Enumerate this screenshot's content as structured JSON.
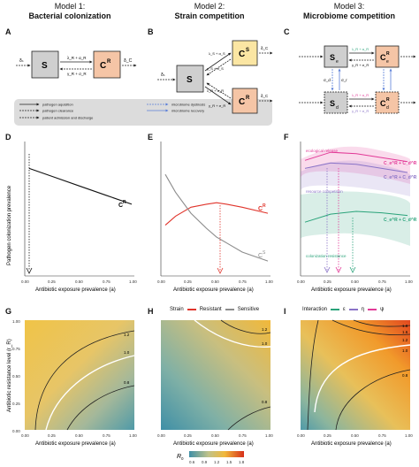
{
  "models": [
    {
      "number": "Model 1:",
      "name": "Bacterial colonization"
    },
    {
      "number": "Model 2:",
      "name": "Strain competition"
    },
    {
      "number": "Model 3:",
      "name": "Microbiome competition"
    }
  ],
  "panel_letters": [
    "A",
    "B",
    "C",
    "D",
    "E",
    "F",
    "G",
    "H",
    "I"
  ],
  "diagram": {
    "S": "S",
    "CR": "C",
    "CR_sup": "R",
    "CS": "C",
    "CS_sup": "S",
    "Se": "S",
    "Se_sub": "e",
    "Sd": "S",
    "Sd_sub": "d",
    "Ce": "C",
    "Ce_sup": "R",
    "Ce_sub": "e",
    "Cd": "C",
    "Cd_sup": "R",
    "Cd_sub": "d",
    "in_rate": "δₛ",
    "out_rate_S": "δₛ",
    "out_rate_C": "δ_C",
    "fwd_rate": "λ_R + α_R",
    "back_rate": "γ_R + σ_R",
    "fwd_rate_s": "λ_S + α_S",
    "back_rate_s": "γ_S + σ_S",
    "dys": "σ_d",
    "rec": "σ_r",
    "dys_text": "microbiome dysbiosis",
    "rec_text": "microbiome recovery",
    "acq_text": "pathogen aquisition",
    "clr_text": "pathogen clearance",
    "adm_text": "patient admission and discharge"
  },
  "x_axis_label": "Antibiotic exposure prevalence (a)",
  "y_axis_label_row1": "Pathogen colonization prevalence",
  "y_axis_label_row3": "Antibiotic resistance level (r_R)",
  "ticks": [
    "0.00",
    "0.25",
    "0.50",
    "0.75",
    "1.00"
  ],
  "legend_strain": {
    "title": "Strain",
    "items": [
      "Resistant",
      "Sensitive"
    ],
    "colors": [
      "#e0342b",
      "#8c8c8c"
    ]
  },
  "legend_interaction": {
    "title": "Interaction",
    "items": [
      "ε",
      "η",
      "ψ"
    ],
    "colors": [
      "#2aa37a",
      "#8a73c7",
      "#e23a97"
    ]
  },
  "f_annotations": [
    "ecological release",
    "resource competition",
    "colonization resistance"
  ],
  "f_series": [
    "C_e^R + C_d^R",
    "C_e^R + C_d^R",
    "C_e^R + C_d^R"
  ],
  "curve_labels": {
    "D": "C",
    "D_sup": "R",
    "E_R": "C",
    "E_R_sup": "R",
    "E_S": "C",
    "E_S_sup": "S"
  },
  "contour_labels": [
    "1.2",
    "1.0",
    "0.8"
  ],
  "colorbar": {
    "title": "R",
    "title_sub": "0",
    "ticks": [
      "0.6",
      "0.9",
      "1.2",
      "1.5",
      "1.8"
    ]
  },
  "chart_data": [
    {
      "type": "line",
      "panel": "D",
      "xlabel": "Antibiotic exposure prevalence (a)",
      "ylabel": "Pathogen colonization prevalence",
      "series": [
        {
          "name": "C^R",
          "x": [
            0,
            0.25,
            0.5,
            0.75,
            1.0
          ],
          "values": [
            0.36,
            0.33,
            0.3,
            0.27,
            0.24
          ]
        }
      ],
      "xlim": [
        0,
        1
      ]
    },
    {
      "type": "line",
      "panel": "E",
      "xlabel": "Antibiotic exposure prevalence (a)",
      "series": [
        {
          "name": "C^R",
          "x": [
            0,
            0.1,
            0.25,
            0.4,
            0.5,
            0.6,
            0.75,
            1.0
          ],
          "values": [
            0.17,
            0.2,
            0.23,
            0.24,
            0.245,
            0.24,
            0.23,
            0.21
          ]
        },
        {
          "name": "C^S",
          "x": [
            0,
            0.1,
            0.25,
            0.4,
            0.5,
            0.6,
            0.75,
            1.0
          ],
          "values": [
            0.34,
            0.28,
            0.21,
            0.16,
            0.13,
            0.11,
            0.08,
            0.05
          ]
        }
      ],
      "xlim": [
        0,
        1
      ]
    },
    {
      "type": "area",
      "panel": "F",
      "xlabel": "Antibiotic exposure prevalence (a)",
      "series": [
        {
          "name": "C_e^R + C_d^R",
          "x": [
            0,
            0.25,
            0.5,
            0.75,
            1.0
          ],
          "values": [
            0.86,
            0.92,
            0.91,
            0.88,
            0.85
          ]
        },
        {
          "name": "C_e^R + C_d^R",
          "x": [
            0,
            0.25,
            0.5,
            0.75,
            1.0
          ],
          "values": [
            0.8,
            0.84,
            0.83,
            0.8,
            0.77
          ]
        },
        {
          "name": "C_e^R + C_d^R",
          "x": [
            0,
            0.25,
            0.5,
            0.75,
            1.0
          ],
          "values": [
            0.4,
            0.46,
            0.48,
            0.47,
            0.45
          ]
        }
      ],
      "xlim": [
        0,
        1
      ]
    },
    {
      "type": "heatmap",
      "panel": "G",
      "xlabel": "Antibiotic exposure prevalence (a)",
      "ylabel": "Antibiotic resistance level (r_R)",
      "contours": [
        "1.2",
        "1.0",
        "0.8"
      ]
    },
    {
      "type": "heatmap",
      "panel": "H",
      "xlabel": "Antibiotic exposure prevalence (a)",
      "contours": [
        "1.2",
        "1.0",
        "0.8"
      ]
    },
    {
      "type": "heatmap",
      "panel": "I",
      "xlabel": "Antibiotic exposure prevalence (a)",
      "contours": [
        "1.8",
        "1.6",
        "1.4",
        "1.2",
        "1.0",
        "0.8"
      ]
    }
  ]
}
